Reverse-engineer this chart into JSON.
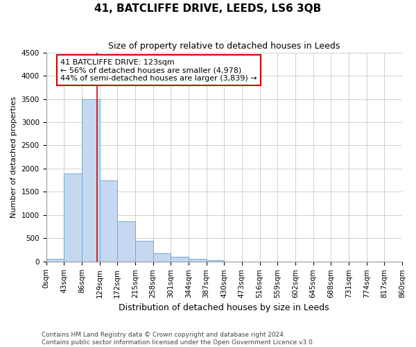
{
  "title": "41, BATCLIFFE DRIVE, LEEDS, LS6 3QB",
  "subtitle": "Size of property relative to detached houses in Leeds",
  "xlabel": "Distribution of detached houses by size in Leeds",
  "ylabel": "Number of detached properties",
  "bin_edges": [
    0,
    43,
    86,
    129,
    172,
    215,
    258,
    301,
    344,
    387,
    430,
    473,
    516,
    559,
    602,
    645,
    688,
    731,
    774,
    817,
    860
  ],
  "bar_heights": [
    50,
    1900,
    3500,
    1750,
    860,
    450,
    175,
    100,
    60,
    30,
    0,
    0,
    0,
    0,
    0,
    0,
    0,
    0,
    0,
    0
  ],
  "bar_color": "#c5d8f0",
  "bar_edge_color": "#6aaad4",
  "property_size": 123,
  "red_line_color": "#cc0000",
  "annotation_line1": "41 BATCLIFFE DRIVE: 123sqm",
  "annotation_line2": "← 56% of detached houses are smaller (4,978)",
  "annotation_line3": "44% of semi-detached houses are larger (3,839) →",
  "annotation_box_color": "#ffffff",
  "annotation_box_edge_color": "#cc0000",
  "ylim": [
    0,
    4500
  ],
  "yticks": [
    0,
    500,
    1000,
    1500,
    2000,
    2500,
    3000,
    3500,
    4000,
    4500
  ],
  "footer_line1": "Contains HM Land Registry data © Crown copyright and database right 2024.",
  "footer_line2": "Contains public sector information licensed under the Open Government Licence v3.0.",
  "bg_color": "#ffffff",
  "grid_color": "#c8c8c8",
  "title_fontsize": 11,
  "subtitle_fontsize": 9,
  "xlabel_fontsize": 9,
  "ylabel_fontsize": 8,
  "tick_fontsize": 7.5,
  "annotation_fontsize": 8,
  "footer_fontsize": 6.5
}
